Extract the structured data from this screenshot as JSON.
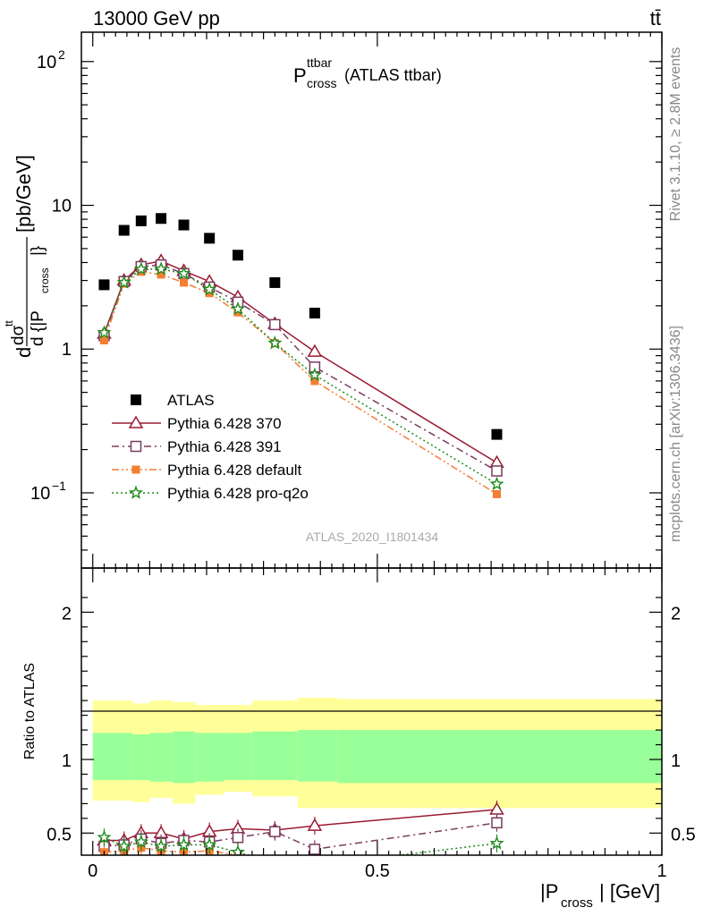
{
  "header": {
    "collision": "13000 GeV pp",
    "process": "tt̄"
  },
  "side_labels": {
    "rivet": "Rivet 3.1.10, ≥ 2.8M events",
    "mcplots": "mcplots.cern.ch [arXiv:1306.3436]"
  },
  "analysis_id": "ATLAS_2020_I1801434",
  "chart_data": [
    {
      "type": "line",
      "panel": "main",
      "title": "P_cross^ttbar (ATLAS ttbar)",
      "title_main": "P",
      "title_sup": "ttbar",
      "title_sub": "cross",
      "title_suffix": "(ATLAS ttbar)",
      "ylabel": "d dσ^tt / d {|P_cross|} [pb/GeV]",
      "ylabel_parts": {
        "d": "d",
        "num": "dσ",
        "num_sup": "tt",
        "den": "d {|P",
        "den_sub": "cross",
        "den_end": "|}",
        "unit": "[pb/GeV]"
      },
      "yscale": "log",
      "ylim": [
        0.03,
        160
      ],
      "xlim": [
        -0.02,
        1.0
      ],
      "ytick_labels": [
        {
          "value": 0.1,
          "base": "10",
          "exp": "−1"
        },
        {
          "value": 1,
          "base": "1",
          "exp": ""
        },
        {
          "value": 10,
          "base": "10",
          "exp": ""
        },
        {
          "value": 100,
          "base": "10",
          "exp": "2"
        }
      ],
      "legend_position": "lower-left",
      "series": [
        {
          "name": "ATLAS",
          "color": "#000000",
          "marker": "square",
          "line": "none",
          "x": [
            0.02,
            0.055,
            0.085,
            0.12,
            0.16,
            0.205,
            0.255,
            0.32,
            0.39,
            0.71
          ],
          "y": [
            2.8,
            6.7,
            7.8,
            8.1,
            7.3,
            5.9,
            4.5,
            2.9,
            1.78,
            0.255
          ]
        },
        {
          "name": "Pythia 6.428 370",
          "color": "#9a1b32",
          "marker": "triangle",
          "line": "solid",
          "x": [
            0.02,
            0.055,
            0.085,
            0.12,
            0.16,
            0.205,
            0.255,
            0.32,
            0.39,
            0.71
          ],
          "y": [
            1.28,
            3.0,
            3.85,
            4.1,
            3.5,
            2.95,
            2.3,
            1.5,
            0.96,
            0.162
          ]
        },
        {
          "name": "Pythia 6.428 391",
          "color": "#7a3b5e",
          "marker": "open-square",
          "line": "dashdot",
          "x": [
            0.02,
            0.055,
            0.085,
            0.12,
            0.16,
            0.205,
            0.255,
            0.32,
            0.39,
            0.71
          ],
          "y": [
            1.24,
            2.95,
            3.75,
            3.85,
            3.35,
            2.7,
            2.12,
            1.48,
            0.75,
            0.142
          ]
        },
        {
          "name": "Pythia 6.428 default",
          "color": "#f47e32",
          "marker": "filled-square",
          "line": "dashdotdot",
          "x": [
            0.02,
            0.055,
            0.085,
            0.12,
            0.16,
            0.205,
            0.255,
            0.32,
            0.39,
            0.71
          ],
          "y": [
            1.15,
            2.85,
            3.45,
            3.3,
            2.9,
            2.45,
            1.8,
            1.1,
            0.6,
            0.098
          ]
        },
        {
          "name": "Pythia 6.428 pro-q2o",
          "color": "#1e8a1e",
          "marker": "star",
          "line": "dotted",
          "x": [
            0.02,
            0.055,
            0.085,
            0.12,
            0.16,
            0.205,
            0.255,
            0.32,
            0.39,
            0.71
          ],
          "y": [
            1.3,
            2.9,
            3.6,
            3.6,
            3.35,
            2.6,
            1.9,
            1.1,
            0.66,
            0.115
          ]
        }
      ]
    },
    {
      "type": "line",
      "panel": "ratio",
      "ylabel": "Ratio to ATLAS",
      "xlabel": "|P_cross| [GeV]",
      "xlabel_parts": {
        "pre": "|P",
        "sub": "cross",
        "post": "| [GeV]"
      },
      "ylim": [
        0.35,
        2.3
      ],
      "xlim": [
        -0.02,
        1.0
      ],
      "xtick_labels": [
        "0",
        "0.5",
        "1"
      ],
      "xtick_values": [
        0,
        0.5,
        1
      ],
      "ytick_labels": [
        "0.5",
        "1",
        "2"
      ],
      "ytick_values": [
        0.5,
        1,
        2
      ],
      "bands": {
        "bin_edges": [
          0.0,
          0.07,
          0.1,
          0.14,
          0.18,
          0.23,
          0.28,
          0.36,
          0.43,
          1.0
        ],
        "stat_color": "#99ff99",
        "total_color": "#ffff99",
        "stat_low": [
          0.86,
          0.86,
          0.85,
          0.84,
          0.85,
          0.86,
          0.86,
          0.85,
          0.84
        ],
        "stat_high": [
          1.18,
          1.17,
          1.18,
          1.19,
          1.18,
          1.18,
          1.19,
          1.2,
          1.2
        ],
        "total_low": [
          0.72,
          0.71,
          0.74,
          0.7,
          0.76,
          0.78,
          0.75,
          0.67,
          0.67
        ],
        "total_high": [
          1.4,
          1.38,
          1.4,
          1.39,
          1.37,
          1.37,
          1.4,
          1.42,
          1.41
        ]
      },
      "series": [
        {
          "name": "Pythia 6.428 370",
          "color": "#9a1b32",
          "x": [
            0.02,
            0.055,
            0.085,
            0.12,
            0.16,
            0.205,
            0.255,
            0.32,
            0.39,
            0.71
          ],
          "y": [
            0.45,
            0.45,
            0.5,
            0.5,
            0.46,
            0.51,
            0.53,
            0.52,
            0.55,
            0.66
          ]
        },
        {
          "name": "Pythia 6.428 391",
          "color": "#7a3b5e",
          "x": [
            0.02,
            0.055,
            0.085,
            0.12,
            0.16,
            0.205,
            0.255,
            0.32,
            0.39,
            0.71
          ],
          "y": [
            0.41,
            0.42,
            0.46,
            0.43,
            0.45,
            0.44,
            0.47,
            0.51,
            0.39,
            0.57
          ]
        },
        {
          "name": "Pythia 6.428 default",
          "color": "#f47e32",
          "x": [
            0.02,
            0.055,
            0.085,
            0.12,
            0.16,
            0.205,
            0.255,
            0.32
          ],
          "y": [
            0.37,
            0.38,
            0.4,
            0.38,
            0.37,
            0.38,
            0.35,
            0.31
          ]
        },
        {
          "name": "Pythia 6.428 pro-q2o",
          "color": "#1e8a1e",
          "x": [
            0.02,
            0.055,
            0.085,
            0.12,
            0.16,
            0.205,
            0.255,
            0.32,
            0.39,
            0.71
          ],
          "y": [
            0.47,
            0.41,
            0.44,
            0.41,
            0.42,
            0.42,
            0.37,
            0.3,
            0.28,
            0.43
          ]
        }
      ]
    }
  ]
}
